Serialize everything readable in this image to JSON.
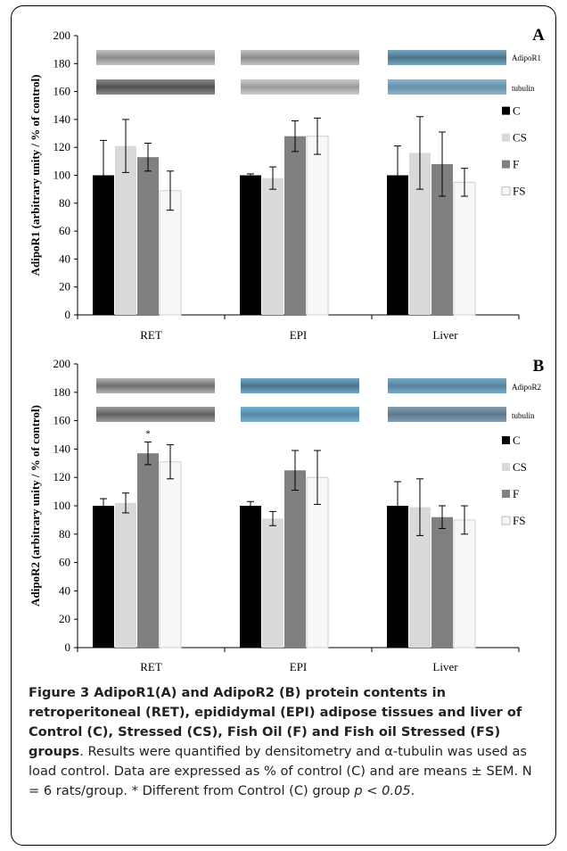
{
  "chart_data": [
    {
      "type": "bar",
      "panel": "A",
      "ylabel": "AdipoR1 (arbitrary unity / % of control)",
      "ylim": [
        0,
        200
      ],
      "yticks": [
        "0",
        "20",
        "40",
        "60",
        "80",
        "100",
        "120",
        "140",
        "160",
        "180",
        "200"
      ],
      "categories": [
        "RET",
        "EPI",
        "Liver"
      ],
      "series": [
        {
          "name": "C",
          "color": "#000000",
          "values": [
            100,
            100,
            100
          ],
          "errors": [
            25,
            1,
            21
          ]
        },
        {
          "name": "CS",
          "color": "#d9d9d9",
          "values": [
            121,
            98,
            116
          ],
          "errors": [
            19,
            8,
            26
          ]
        },
        {
          "name": "F",
          "color": "#808080",
          "values": [
            113,
            128,
            108
          ],
          "errors": [
            10,
            11,
            23
          ]
        },
        {
          "name": "FS",
          "color": "#f7f7f7",
          "values": [
            89,
            128,
            95
          ],
          "errors": [
            14,
            13,
            10
          ]
        }
      ],
      "annotations": [],
      "blot_labels": [
        "AdipoR1",
        "tubulin"
      ],
      "legend_position": "right"
    },
    {
      "type": "bar",
      "panel": "B",
      "ylabel": "AdipoR2 (arbitrary unity / % of control)",
      "ylim": [
        0,
        200
      ],
      "yticks": [
        "0",
        "20",
        "40",
        "60",
        "80",
        "100",
        "120",
        "140",
        "160",
        "180",
        "200"
      ],
      "categories": [
        "RET",
        "EPI",
        "Liver"
      ],
      "series": [
        {
          "name": "C",
          "color": "#000000",
          "values": [
            100,
            100,
            100
          ],
          "errors": [
            5,
            3,
            17
          ]
        },
        {
          "name": "CS",
          "color": "#d9d9d9",
          "values": [
            102,
            91,
            99
          ],
          "errors": [
            7,
            5,
            20
          ]
        },
        {
          "name": "F",
          "color": "#808080",
          "values": [
            137,
            125,
            92
          ],
          "errors": [
            8,
            14,
            8
          ]
        },
        {
          "name": "FS",
          "color": "#f7f7f7",
          "values": [
            131,
            120,
            90
          ],
          "errors": [
            12,
            19,
            10
          ]
        }
      ],
      "annotations": [
        {
          "category": 0,
          "series": 2,
          "text": "*"
        }
      ],
      "blot_labels": [
        "AdipoR2",
        "tubulin"
      ],
      "legend_position": "right"
    }
  ],
  "caption": {
    "bold": "Figure 3 AdipoR1(A) and AdipoR2 (B) protein contents in retroperitoneal (RET), epididymal (EPI) adipose tissues and liver of Control (C), Stressed (CS), Fish Oil (F) and Fish oil Stressed (FS) groups",
    "p1": ". Results were quantified by densitometry and ",
    "alpha": "α",
    "p2": "-tubulin was used as load control. Data are expressed as % of control (C) and are means ± SEM. N = 6 rats/group. * Different from Control (C) group ",
    "p_italic": "p < 0.05",
    "p3": "."
  }
}
